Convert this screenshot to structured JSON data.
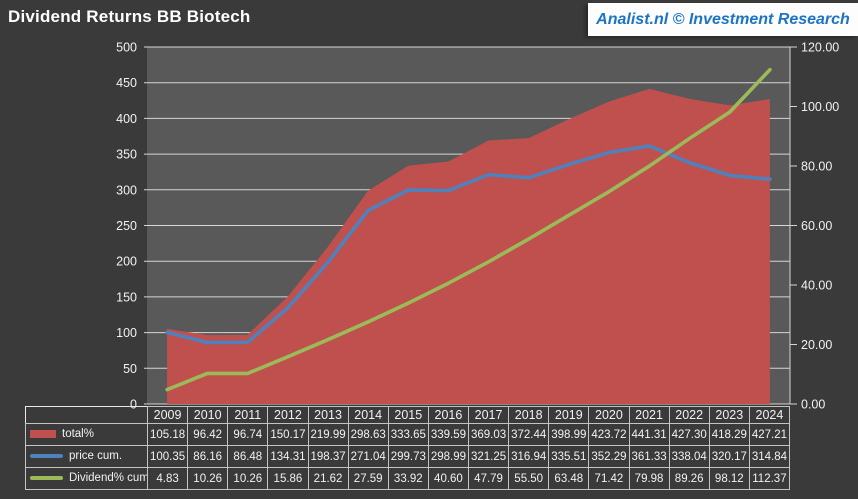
{
  "header": {
    "title": "Dividend Returns BB Biotech",
    "brand": "Analist.nl © Investment Research"
  },
  "colors": {
    "page_bg": "#3a3a3a",
    "plot_bg": "#595959",
    "gridline": "#d6d6d6",
    "axis_text": "#f2f2f2",
    "brand_blue": "#1b74c5",
    "total_red": "#c0504d",
    "price_blue": "#4f81bd",
    "dividend_green": "#9bbb59",
    "table_border": "#c4c4c4",
    "table_outer_border": "#e9e9e9"
  },
  "chart_data": {
    "type": "combo-area-line",
    "title": "Dividend Returns BB Biotech",
    "grid": true,
    "legend_position": "table-left",
    "plot_bg": "#595959",
    "categories": [
      "2009",
      "2010",
      "2011",
      "2012",
      "2013",
      "2014",
      "2015",
      "2016",
      "2017",
      "2018",
      "2019",
      "2020",
      "2021",
      "2022",
      "2023",
      "2024"
    ],
    "series": [
      {
        "name": "total%",
        "type": "area",
        "axis": "left",
        "color": "#c0504d",
        "values": [
          105.18,
          96.42,
          96.74,
          150.17,
          219.99,
          298.63,
          333.65,
          339.59,
          369.03,
          372.44,
          398.99,
          423.72,
          441.31,
          427.3,
          418.29,
          427.21
        ]
      },
      {
        "name": "price cum.",
        "type": "line",
        "axis": "left",
        "color": "#4f81bd",
        "values": [
          100.35,
          86.16,
          86.48,
          134.31,
          198.37,
          271.04,
          299.73,
          298.99,
          321.25,
          316.94,
          335.51,
          352.29,
          361.33,
          338.04,
          320.17,
          314.84
        ]
      },
      {
        "name": "Dividend% cum.",
        "type": "line",
        "axis": "right",
        "color": "#9bbb59",
        "values": [
          4.83,
          10.26,
          10.26,
          15.86,
          21.62,
          27.59,
          33.92,
          40.6,
          47.79,
          55.5,
          63.48,
          71.42,
          79.98,
          89.26,
          98.12,
          112.37
        ]
      }
    ],
    "left_axis": {
      "min": 0,
      "max": 500,
      "step": 50,
      "tick_labels": [
        "0",
        "50",
        "100",
        "150",
        "200",
        "250",
        "300",
        "350",
        "400",
        "450",
        "500"
      ]
    },
    "right_axis": {
      "min": 0,
      "max": 120,
      "step": 20,
      "tick_labels": [
        "0.00",
        "20.00",
        "40.00",
        "60.00",
        "80.00",
        "100.00",
        "120.00"
      ]
    }
  }
}
